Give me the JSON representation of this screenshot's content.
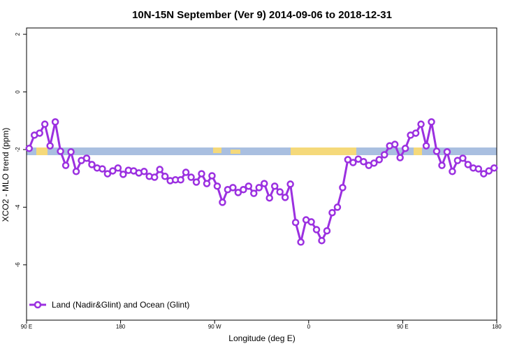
{
  "chart_data": {
    "type": "line",
    "title": "10N-15N September (Ver 9)   2014-09-06 to 2018-12-31",
    "x_label": "Longitude (deg E)",
    "y_label": "XCO2 - MLO trend (ppm)",
    "xlim": [
      90,
      540
    ],
    "xticks": [
      {
        "value": 90,
        "label": "90 E"
      },
      180,
      {
        "value": 270,
        "label": "90 W"
      },
      {
        "value": 360,
        "label": "0"
      },
      {
        "value": 450,
        "label": "90 E"
      },
      {
        "value": 540,
        "label": "180"
      }
    ],
    "ylim": [
      -7.92,
      2.22
    ],
    "yticks": [
      -6,
      -4,
      -2,
      0,
      2
    ],
    "legend": "bottom-left",
    "x": [
      92.5,
      97.5,
      102.5,
      107.5,
      112.5,
      117.5,
      122.5,
      127.5,
      132.5,
      137.5,
      142.5,
      147.5,
      152.5,
      157.5,
      162.5,
      167.5,
      172.5,
      177.5,
      182.5,
      187.5,
      192.5,
      197.5,
      202.5,
      207.5,
      212.5,
      217.5,
      222.5,
      227.5,
      232.5,
      237.5,
      242.5,
      247.5,
      252.5,
      257.5,
      262.5,
      267.5,
      272.5,
      277.5,
      282.5,
      287.5,
      292.5,
      297.5,
      302.5,
      307.5,
      312.5,
      317.5,
      322.5,
      327.5,
      332.5,
      337.5,
      342.5,
      347.5,
      352.5,
      357.5,
      362.5,
      367.5,
      372.5,
      377.5,
      382.5,
      387.5,
      392.5,
      397.5,
      402.5,
      407.5,
      412.5,
      417.5,
      422.5,
      427.5,
      432.5,
      437.5,
      442.5,
      447.5,
      452.5,
      457.5,
      462.5,
      467.5,
      472.5,
      477.5,
      482.5,
      487.5,
      492.5,
      497.5,
      502.5,
      507.5,
      512.5,
      517.5,
      522.5,
      527.5,
      532.5,
      537.5
    ],
    "series": [
      {
        "name": "Land (Nadir&Glint) and Ocean (Glint)",
        "color": "#9b30e0",
        "values": [
          -1.96,
          -1.5,
          -1.43,
          -1.12,
          -1.87,
          -1.04,
          -2.06,
          -2.55,
          -2.08,
          -2.76,
          -2.38,
          -2.3,
          -2.52,
          -2.64,
          -2.67,
          -2.84,
          -2.74,
          -2.64,
          -2.86,
          -2.72,
          -2.74,
          -2.81,
          -2.76,
          -2.93,
          -2.96,
          -2.69,
          -2.93,
          -3.08,
          -3.05,
          -3.05,
          -2.79,
          -2.96,
          -3.13,
          -2.84,
          -3.18,
          -2.91,
          -3.27,
          -3.83,
          -3.39,
          -3.32,
          -3.49,
          -3.39,
          -3.27,
          -3.52,
          -3.32,
          -3.18,
          -3.68,
          -3.27,
          -3.47,
          -3.66,
          -3.2,
          -4.53,
          -5.21,
          -4.44,
          -4.51,
          -4.78,
          -5.16,
          -4.82,
          -4.19,
          -4.0,
          -3.32,
          -2.35,
          -2.45,
          -2.33,
          -2.42,
          -2.55,
          -2.47,
          -2.35,
          -2.18,
          -1.87,
          -1.82,
          -2.28,
          -1.96,
          -1.5,
          -1.43,
          -1.12,
          -1.87,
          -1.04,
          -2.06,
          -2.55,
          -2.08,
          -2.76,
          -2.38,
          -2.3,
          -2.52,
          -2.64,
          -2.67,
          -2.84,
          -2.74,
          -2.64
        ]
      }
    ]
  }
}
